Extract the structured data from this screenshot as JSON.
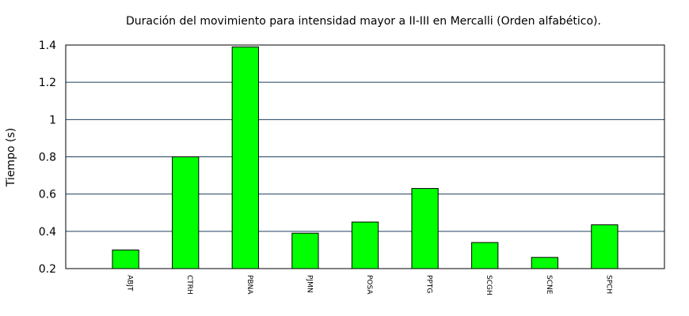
{
  "chart_data": {
    "type": "bar",
    "title": "Duración del movimiento para intensidad mayor a II-III en Mercalli (Orden alfabético).",
    "xlabel": "",
    "ylabel": "Tiempo (s)",
    "ylim": [
      0.2,
      1.4
    ],
    "yticks": [
      "0.2",
      "0.4",
      "0.6",
      "0.8",
      "1",
      "1.2",
      "1.4"
    ],
    "categories": [
      "ABJT",
      "CTRH",
      "PBNA",
      "PJMN",
      "POSA",
      "PPTG",
      "SCGH",
      "SCNE",
      "SPCH"
    ],
    "values": [
      0.3,
      0.8,
      1.39,
      0.39,
      0.45,
      0.63,
      0.34,
      0.26,
      0.435
    ],
    "grid": true,
    "legend": "none",
    "colors": {
      "bar": "#00ff00",
      "bar_stroke": "#000000",
      "grid": "#1f3f5f",
      "frame": "#000000"
    }
  }
}
